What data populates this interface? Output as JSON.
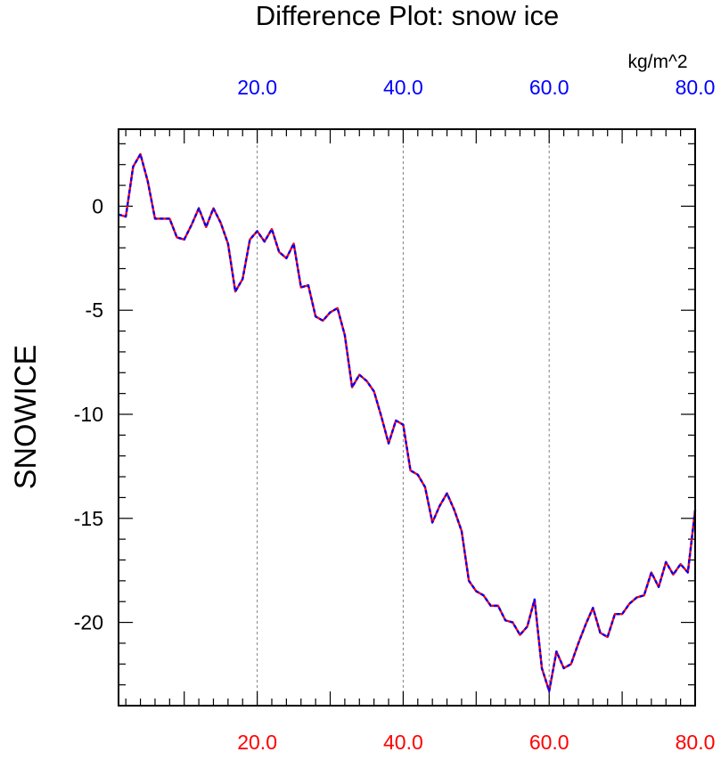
{
  "chart_data": {
    "type": "line",
    "title": "Difference Plot: snow ice",
    "ylabel": "SNOWICE",
    "units": "kg/m^2",
    "xlim": [
      1,
      80
    ],
    "ylim": [
      -24,
      3.7
    ],
    "x_ticks": [
      20,
      40,
      60,
      80
    ],
    "x_tick_labels": [
      "20.0",
      "40.0",
      "60.0",
      "80.0"
    ],
    "y_ticks": [
      0,
      -5,
      -10,
      -15,
      -20
    ],
    "y_tick_labels": [
      "0",
      "-5",
      "-10",
      "-15",
      "-20"
    ],
    "grid": "vertical dashed at major x ticks",
    "colors": {
      "bottom_tick_labels": "#ff0000",
      "top_tick_labels": "#0000ff",
      "line_primary": "#ff0000",
      "line_secondary": "#0000ff",
      "grid": "#808080"
    },
    "series": [
      {
        "x": [
          1,
          2,
          3,
          4,
          5,
          6,
          7,
          8,
          9,
          10,
          11,
          12,
          13,
          14,
          15,
          16,
          17,
          18,
          19,
          20,
          21,
          22,
          23,
          24,
          25,
          26,
          27,
          28,
          29,
          30,
          31,
          32,
          33,
          34,
          35,
          36,
          37,
          38,
          39,
          40,
          41,
          42,
          43,
          44,
          45,
          46,
          47,
          48,
          49,
          50,
          51,
          52,
          53,
          54,
          55,
          56,
          57,
          58,
          59,
          60,
          61,
          62,
          63,
          64,
          65,
          66,
          67,
          68,
          69,
          70,
          71,
          72,
          73,
          74,
          75,
          76,
          77,
          78,
          79,
          80
        ],
        "values": [
          -0.4,
          -0.5,
          1.9,
          2.5,
          1.2,
          -0.6,
          -0.6,
          -0.6,
          -1.5,
          -1.6,
          -0.9,
          -0.1,
          -1,
          -0.1,
          -0.8,
          -1.8,
          -4.1,
          -3.5,
          -1.6,
          -1.2,
          -1.7,
          -1.1,
          -2.2,
          -2.5,
          -1.8,
          -3.9,
          -3.8,
          -5.3,
          -5.5,
          -5.1,
          -4.9,
          -6.2,
          -8.7,
          -8.1,
          -8.4,
          -8.9,
          -10.1,
          -11.4,
          -10.3,
          -10.5,
          -12.7,
          -12.9,
          -13.5,
          -15.2,
          -14.4,
          -13.8,
          -14.6,
          -15.6,
          -18,
          -18.5,
          -18.7,
          -19.2,
          -19.2,
          -19.9,
          -20,
          -20.6,
          -20.2,
          -18.9,
          -22.2,
          -23.3,
          -21.4,
          -22.2,
          -22,
          -21,
          -20.1,
          -19.3,
          -20.5,
          -20.7,
          -19.6,
          -19.6,
          -19.1,
          -18.8,
          -18.7,
          -17.6,
          -18.3,
          -17.1,
          -17.7,
          -17.2,
          -17.6,
          -14.6
        ]
      }
    ]
  }
}
